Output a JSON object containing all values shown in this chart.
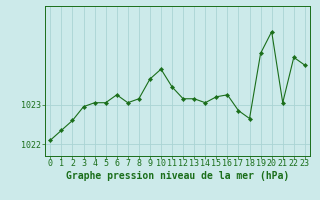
{
  "x": [
    0,
    1,
    2,
    3,
    4,
    5,
    6,
    7,
    8,
    9,
    10,
    11,
    12,
    13,
    14,
    15,
    16,
    17,
    18,
    19,
    20,
    21,
    22,
    23
  ],
  "y": [
    1022.1,
    1022.35,
    1022.6,
    1022.95,
    1023.05,
    1023.05,
    1023.25,
    1023.05,
    1023.15,
    1023.65,
    1023.9,
    1023.45,
    1023.15,
    1023.15,
    1023.05,
    1023.2,
    1023.25,
    1022.85,
    1022.65,
    1024.3,
    1024.85,
    1023.05,
    1024.2,
    1024.0
  ],
  "line_color": "#1a6e1a",
  "marker": "D",
  "marker_size": 2.2,
  "bg_color": "#cceaea",
  "grid_color": "#aad4d4",
  "title": "Graphe pression niveau de la mer (hPa)",
  "xlabel_ticks": [
    "0",
    "1",
    "2",
    "3",
    "4",
    "5",
    "6",
    "7",
    "8",
    "9",
    "10",
    "11",
    "12",
    "13",
    "14",
    "15",
    "16",
    "17",
    "18",
    "19",
    "20",
    "21",
    "22",
    "23"
  ],
  "yticks": [
    1022,
    1023
  ],
  "ytick_labels": [
    "1022",
    "1023"
  ],
  "ylim": [
    1021.7,
    1025.5
  ],
  "xlim": [
    -0.5,
    23.5
  ],
  "tick_fontsize": 6.0,
  "title_fontsize": 7.0
}
